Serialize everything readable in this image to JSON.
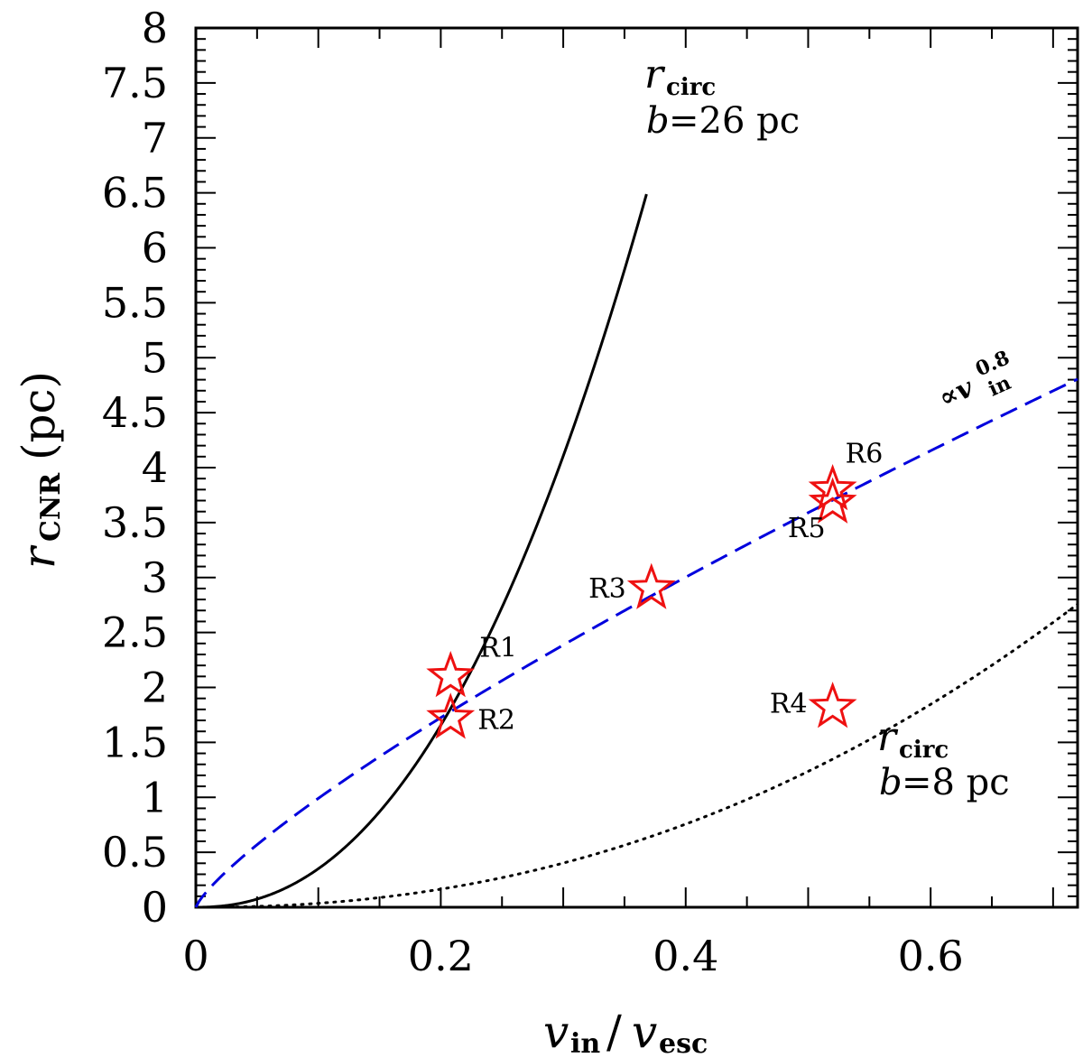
{
  "chart_data": {
    "type": "line",
    "xlabel": {
      "v": "v",
      "in": "in",
      "slash": "/",
      "v2": "v",
      "esc": "esc"
    },
    "ylabel": {
      "r": "r",
      "sub": "CNR",
      "unit": "(pc)"
    },
    "xlim": [
      0,
      0.72
    ],
    "ylim": [
      0,
      8
    ],
    "x_ticks": [
      {
        "v": 0,
        "label": "0"
      },
      {
        "v": 0.2,
        "label": "0.2"
      },
      {
        "v": 0.4,
        "label": "0.4"
      },
      {
        "v": 0.6,
        "label": "0.6"
      }
    ],
    "y_ticks": [
      {
        "v": 0,
        "label": "0"
      },
      {
        "v": 0.5,
        "label": "0.5"
      },
      {
        "v": 1,
        "label": "1"
      },
      {
        "v": 1.5,
        "label": "1.5"
      },
      {
        "v": 2,
        "label": "2"
      },
      {
        "v": 2.5,
        "label": "2.5"
      },
      {
        "v": 3,
        "label": "3"
      },
      {
        "v": 3.5,
        "label": "3.5"
      },
      {
        "v": 4,
        "label": "4"
      },
      {
        "v": 4.5,
        "label": "4.5"
      },
      {
        "v": 5,
        "label": "5"
      },
      {
        "v": 5.5,
        "label": "5.5"
      },
      {
        "v": 6,
        "label": "6"
      },
      {
        "v": 6.5,
        "label": "6.5"
      },
      {
        "v": 7,
        "label": "7"
      },
      {
        "v": 7.5,
        "label": "7.5"
      },
      {
        "v": 8,
        "label": "8"
      }
    ],
    "series": [
      {
        "name": "rcirc b=26 pc",
        "style": "solid",
        "color": "#000000",
        "formula": "y = 60.9 * x^2.24",
        "x": [
          0,
          0.368
        ]
      },
      {
        "name": "rcirc b=8 pc",
        "style": "dotted",
        "color": "#000000",
        "formula": "y = 5.68 * x^2.2",
        "x": [
          0,
          0.72
        ]
      },
      {
        "name": "proportional to v_in^0.8",
        "style": "dashed",
        "color": "#0000dd",
        "formula": "y = 6.25 * x^0.8",
        "x": [
          0,
          0.72
        ]
      }
    ],
    "points": [
      {
        "name": "R1",
        "x": 0.208,
        "y": 2.1
      },
      {
        "name": "R2",
        "x": 0.208,
        "y": 1.72
      },
      {
        "name": "R3",
        "x": 0.372,
        "y": 2.9
      },
      {
        "name": "R4",
        "x": 0.52,
        "y": 1.82
      },
      {
        "name": "R5",
        "x": 0.52,
        "y": 3.68
      },
      {
        "name": "R6",
        "x": 0.52,
        "y": 3.8
      }
    ],
    "star_color": "#ee1111",
    "annotations": {
      "circ26": {
        "r": "r",
        "sub": "circ",
        "b": "b",
        "eq": "=26  pc"
      },
      "circ8": {
        "r": "r",
        "sub": "circ",
        "b": "b",
        "eq": "=8  pc"
      },
      "power": {
        "prop": "∝v",
        "sup": "0.8",
        "sub": "in"
      }
    }
  }
}
